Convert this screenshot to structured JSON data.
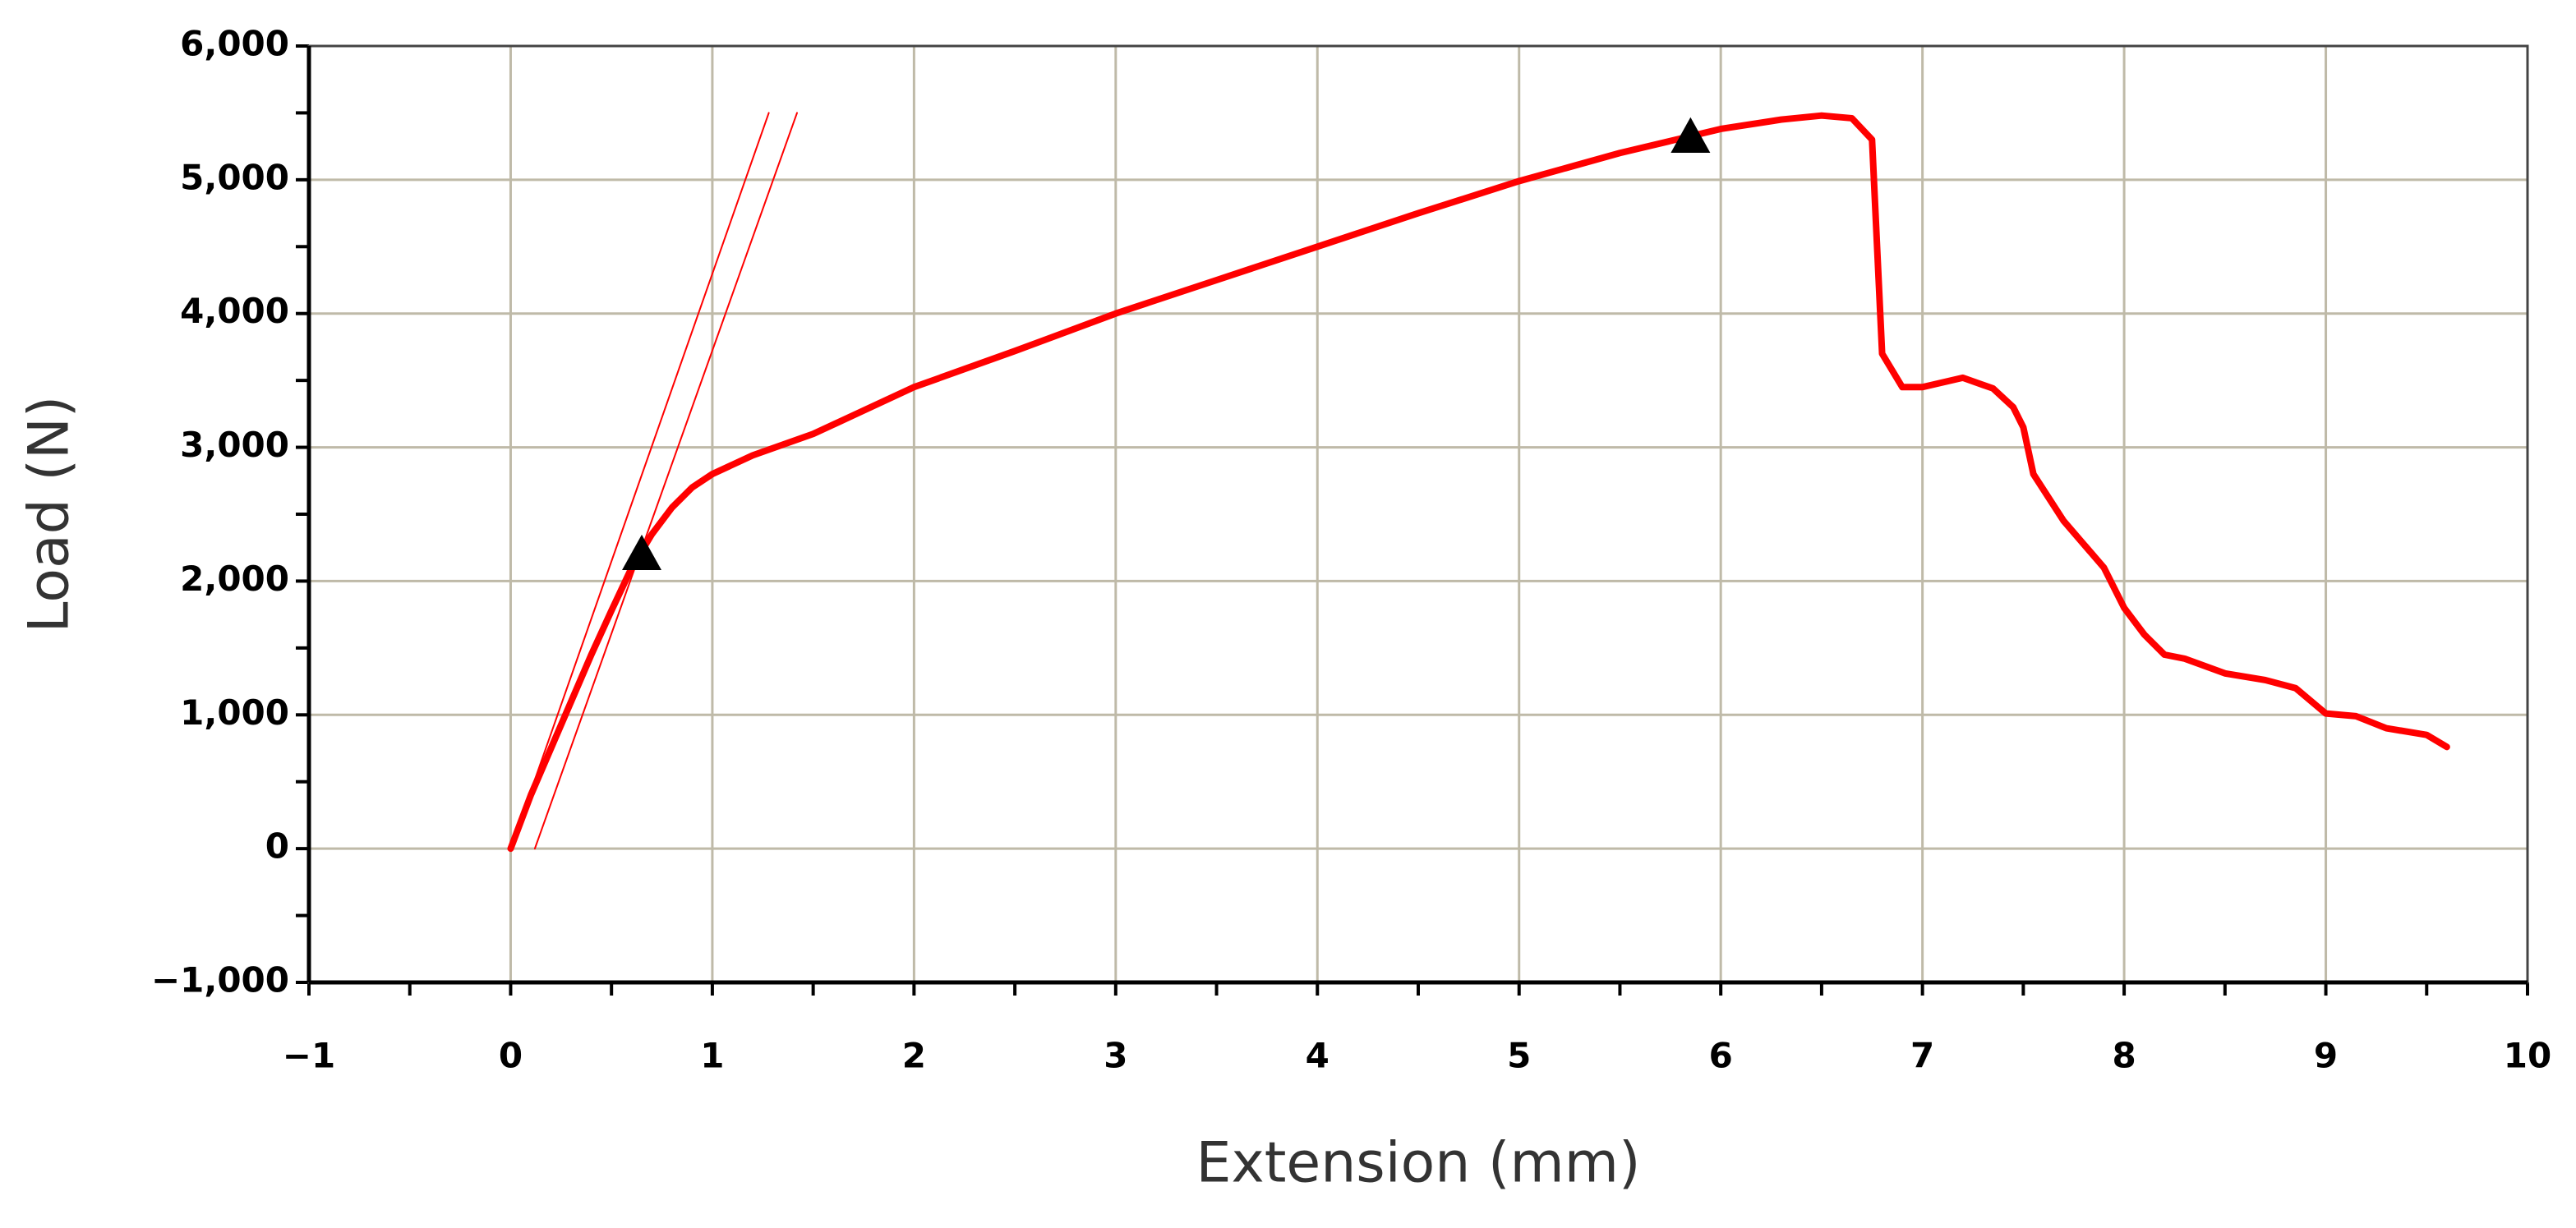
{
  "chart_data": {
    "type": "line",
    "x_label": "Extension (mm)",
    "y_label": "Load (N)",
    "xlim": [
      -1,
      10
    ],
    "ylim": [
      -1000,
      6000
    ],
    "xticks": [
      {
        "value": -1,
        "label": "−1"
      },
      0,
      1,
      2,
      3,
      4,
      5,
      6,
      7,
      8,
      9,
      10
    ],
    "yticks": [
      {
        "value": -1000,
        "label": "−1,000"
      },
      0,
      {
        "value": 1000,
        "label": "1,000"
      },
      {
        "value": 2000,
        "label": "2,000"
      },
      {
        "value": 3000,
        "label": "3,000"
      },
      {
        "value": 4000,
        "label": "4,000"
      },
      {
        "value": 5000,
        "label": "5,000"
      },
      {
        "value": 6000,
        "label": "6,000"
      }
    ],
    "minor_divisions": 2,
    "grid": true,
    "series": [
      {
        "color": "#ff0000",
        "width": "thick",
        "x": [
          0,
          0.1,
          0.2,
          0.3,
          0.4,
          0.5,
          0.6,
          0.7,
          0.8,
          0.9,
          1.0,
          1.2,
          1.5,
          2,
          2.5,
          3,
          3.5,
          4,
          4.5,
          5,
          5.5,
          6,
          6.3,
          6.5,
          6.65,
          6.75,
          6.8,
          6.9,
          7.0,
          7.2,
          7.35,
          7.45,
          7.5,
          7.55,
          7.7,
          7.9,
          8.0,
          8.1,
          8.2,
          8.3,
          8.5,
          8.7,
          8.85,
          9.0,
          9.15,
          9.3,
          9.5,
          9.6
        ],
        "values": [
          0,
          400,
          750,
          1100,
          1450,
          1780,
          2100,
          2350,
          2550,
          2700,
          2800,
          2940,
          3100,
          3450,
          3720,
          4000,
          4250,
          4500,
          4750,
          4990,
          5200,
          5380,
          5450,
          5480,
          5460,
          5300,
          3700,
          3450,
          3450,
          3520,
          3440,
          3300,
          3150,
          2800,
          2450,
          2100,
          1800,
          1600,
          1450,
          1420,
          1310,
          1260,
          1200,
          1010,
          990,
          900,
          850,
          760
        ]
      },
      {
        "color": "#ff0000",
        "width": "thin",
        "x": [
          0,
          1.28
        ],
        "values": [
          0,
          5500
        ]
      },
      {
        "color": "#ff0000",
        "width": "thin",
        "x": [
          0.12,
          1.42
        ],
        "values": [
          0,
          5500
        ]
      },
      {
        "color": "#000000",
        "marker": "triangle",
        "x": [
          0.65,
          5.85
        ],
        "values": [
          2200,
          5320
        ]
      }
    ]
  }
}
